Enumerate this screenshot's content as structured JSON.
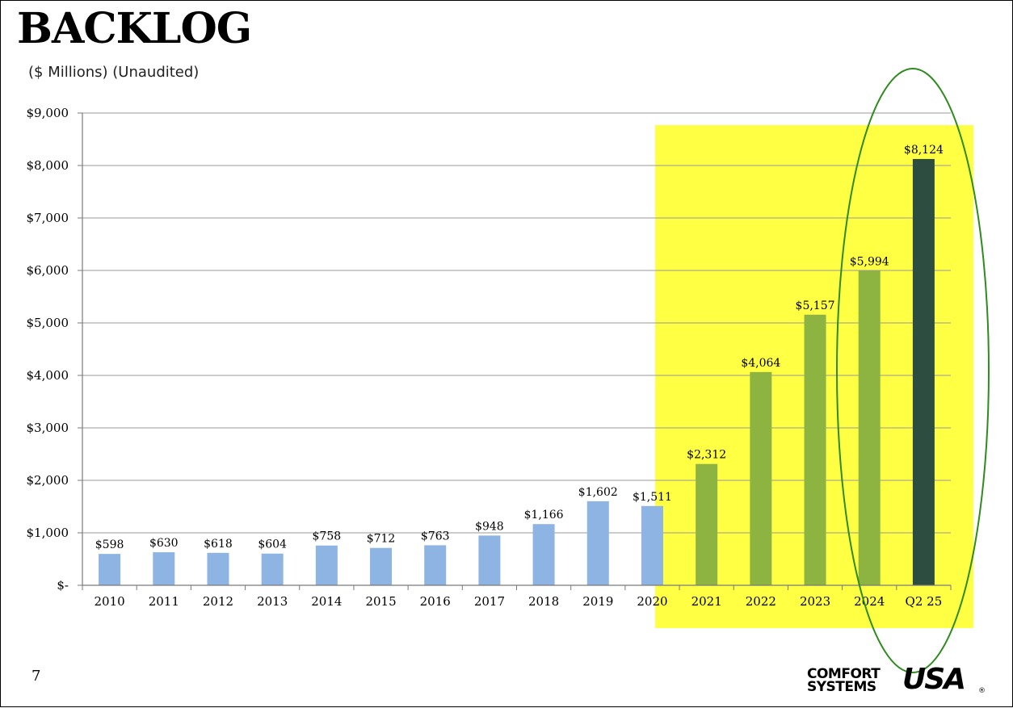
{
  "slide": {
    "title": "BACKLOG",
    "subtitle": "($ Millions) (Unaudited)",
    "page_number": "7",
    "logo": {
      "line1": "COMFORT",
      "line2": "SYSTEMS",
      "mark": "USA",
      "registered": "®"
    }
  },
  "colors": {
    "bar_blue": "#8EB4E3",
    "bar_green": "#8DB440",
    "bar_dark": "#2C4D3F",
    "highlight_yellow": "#FFFF44",
    "ellipse": "#2E8B1E",
    "gridline": "#9A9A9A"
  },
  "chart_data": {
    "type": "bar",
    "title": "BACKLOG",
    "subtitle": "($ Millions) (Unaudited)",
    "xlabel": "",
    "ylabel": "",
    "ylim": [
      0,
      9000
    ],
    "y_ticks": [
      0,
      1000,
      2000,
      3000,
      4000,
      5000,
      6000,
      7000,
      8000,
      9000
    ],
    "y_tick_labels": [
      "$-",
      "$1,000",
      "$2,000",
      "$3,000",
      "$4,000",
      "$5,000",
      "$6,000",
      "$7,000",
      "$8,000",
      "$9,000"
    ],
    "grid": true,
    "legend": "none",
    "categories": [
      "2010",
      "2011",
      "2012",
      "2013",
      "2014",
      "2015",
      "2016",
      "2017",
      "2018",
      "2019",
      "2020",
      "2021",
      "2022",
      "2023",
      "2024",
      "Q2 25"
    ],
    "values": [
      598,
      630,
      618,
      604,
      758,
      712,
      763,
      948,
      1166,
      1602,
      1511,
      2312,
      4064,
      5157,
      5994,
      8124
    ],
    "data_labels": [
      "$598",
      "$630",
      "$618",
      "$604",
      "$758",
      "$712",
      "$763",
      "$948",
      "$1,166",
      "$1,602",
      "$1,511",
      "$2,312",
      "$4,064",
      "$5,157",
      "$5,994",
      "$8,124"
    ],
    "bar_color_keys": [
      "bar_blue",
      "bar_blue",
      "bar_blue",
      "bar_blue",
      "bar_blue",
      "bar_blue",
      "bar_blue",
      "bar_blue",
      "bar_blue",
      "bar_blue",
      "bar_blue",
      "bar_green",
      "bar_green",
      "bar_green",
      "bar_green",
      "bar_dark"
    ],
    "annotations": {
      "highlight_region": "yellow box from 2020 through Q2 25",
      "ellipse": "green ellipse around 2024 and Q2 25"
    }
  }
}
